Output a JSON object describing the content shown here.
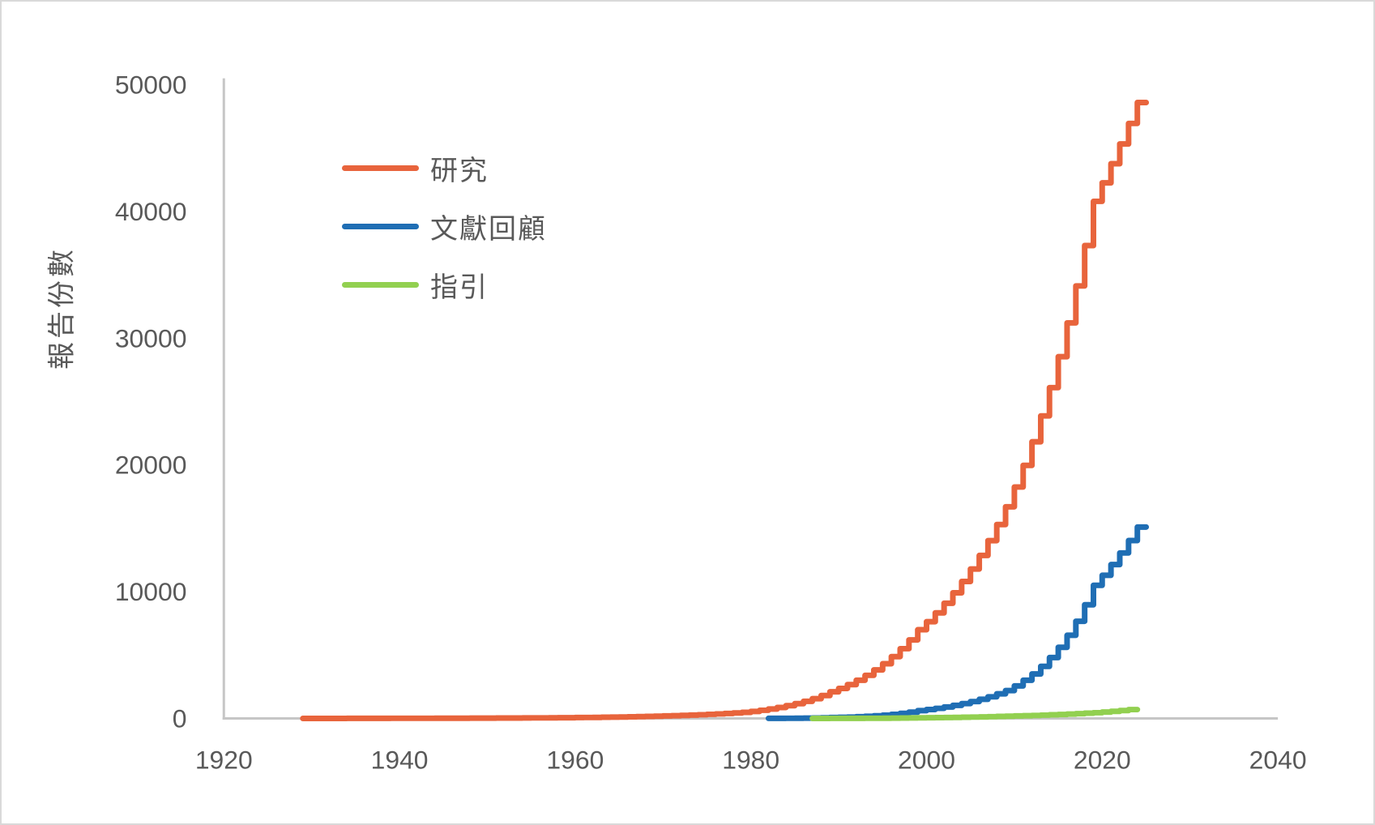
{
  "chart_data": {
    "type": "line",
    "subtype": "step-cumulative",
    "title": "",
    "xlabel": "",
    "ylabel": "報告份數",
    "xlim": [
      1920,
      2040
    ],
    "ylim": [
      0,
      50000
    ],
    "x_ticks": [
      1920,
      1940,
      1960,
      1980,
      2000,
      2020,
      2040
    ],
    "y_ticks": [
      0,
      10000,
      20000,
      30000,
      40000,
      50000
    ],
    "grid": false,
    "legend_position": "top-left-inside",
    "colors": {
      "axis_line": "#c6c6c6",
      "tick_label": "#595959",
      "background": "#ffffff",
      "frame_border": "#d9d9d9"
    },
    "series": [
      {
        "id": "research",
        "name": "研究",
        "color": "#e8643c",
        "start_year": 1929,
        "x_step": 1,
        "values": [
          1,
          1,
          2,
          2,
          2,
          3,
          4,
          4,
          5,
          7,
          8,
          10,
          11,
          12,
          13,
          14,
          16,
          17,
          19,
          21,
          23,
          25,
          27,
          30,
          33,
          35,
          39,
          42,
          46,
          50,
          55,
          60,
          67,
          75,
          83,
          93,
          104,
          116,
          129,
          144,
          161,
          180,
          199,
          219,
          242,
          266,
          294,
          324,
          357,
          394,
          435,
          480,
          556,
          645,
          747,
          866,
          1004,
          1164,
          1349,
          1563,
          1812,
          2100,
          2370,
          2670,
          3010,
          3400,
          3830,
          4320,
          4880,
          5500,
          6200,
          7000,
          7640,
          8330,
          9090,
          9910,
          10810,
          11790,
          12860,
          14030,
          15300,
          16700,
          18260,
          19970,
          21830,
          23870,
          26100,
          28540,
          31210,
          34130,
          37310,
          40800,
          42260,
          43770,
          45330,
          46950,
          48600
        ]
      },
      {
        "id": "literature-review",
        "name": "文獻回顧",
        "color": "#1f6eb4",
        "start_year": 1982,
        "x_step": 1,
        "values": [
          4,
          6,
          8,
          12,
          17,
          24,
          34,
          49,
          70,
          87,
          108,
          135,
          167,
          208,
          259,
          322,
          401,
          499,
          620,
          704,
          799,
          907,
          1030,
          1170,
          1330,
          1510,
          1710,
          1940,
          2200,
          2570,
          3010,
          3510,
          4110,
          4800,
          5610,
          6560,
          7670,
          8970,
          10500,
          11290,
          12140,
          13060,
          14040,
          15100
        ]
      },
      {
        "id": "guideline",
        "name": "指引",
        "color": "#92d050",
        "start_year": 1987,
        "x_step": 1,
        "values": [
          2,
          3,
          3,
          4,
          5,
          7,
          9,
          11,
          15,
          19,
          24,
          31,
          39,
          50,
          57,
          65,
          73,
          84,
          95,
          108,
          123,
          139,
          158,
          180,
          197,
          216,
          237,
          260,
          285,
          312,
          342,
          375,
          411,
          450,
          500,
          560,
          627,
          700
        ]
      }
    ]
  }
}
